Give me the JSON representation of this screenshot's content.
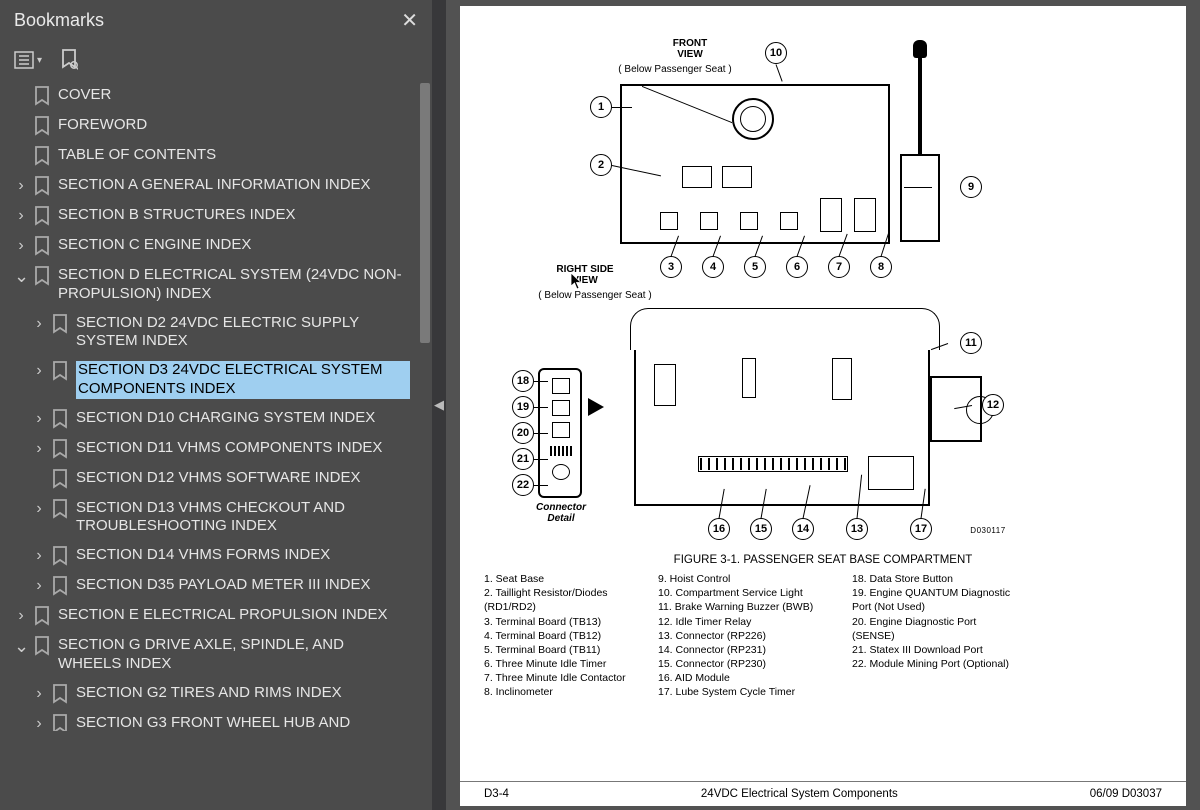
{
  "sidebar": {
    "title": "Bookmarks",
    "items": [
      {
        "depth": 0,
        "chev": "",
        "label": "COVER"
      },
      {
        "depth": 0,
        "chev": "",
        "label": "FOREWORD"
      },
      {
        "depth": 0,
        "chev": "",
        "label": "TABLE OF CONTENTS"
      },
      {
        "depth": 0,
        "chev": ">",
        "label": "SECTION A GENERAL INFORMATION INDEX"
      },
      {
        "depth": 0,
        "chev": ">",
        "label": "SECTION B STRUCTURES INDEX"
      },
      {
        "depth": 0,
        "chev": ">",
        "label": "SECTION C ENGINE INDEX"
      },
      {
        "depth": 0,
        "chev": "v",
        "label": "SECTION D ELECTRICAL SYSTEM (24VDC NON-PROPULSION) INDEX"
      },
      {
        "depth": 1,
        "chev": ">",
        "label": "SECTION D2 24VDC ELECTRIC SUPPLY SYSTEM INDEX"
      },
      {
        "depth": 1,
        "chev": ">",
        "label": "SECTION D3 24VDC ELECTRICAL SYSTEM COMPONENTS INDEX",
        "selected": true
      },
      {
        "depth": 1,
        "chev": ">",
        "label": "SECTION D10 CHARGING SYSTEM INDEX"
      },
      {
        "depth": 1,
        "chev": ">",
        "label": "SECTION D11 VHMS COMPONENTS INDEX"
      },
      {
        "depth": 1,
        "chev": "",
        "label": "SECTION D12 VHMS SOFTWARE INDEX"
      },
      {
        "depth": 1,
        "chev": ">",
        "label": "SECTION D13 VHMS CHECKOUT AND TROUBLESHOOTING INDEX"
      },
      {
        "depth": 1,
        "chev": ">",
        "label": "SECTION D14 VHMS FORMS INDEX"
      },
      {
        "depth": 1,
        "chev": ">",
        "label": "SECTION D35 PAYLOAD METER III INDEX"
      },
      {
        "depth": 0,
        "chev": ">",
        "label": "SECTION E ELECTRICAL PROPULSION INDEX"
      },
      {
        "depth": 0,
        "chev": "v",
        "label": "SECTION G DRIVE AXLE, SPINDLE, AND WHEELS INDEX"
      },
      {
        "depth": 1,
        "chev": ">",
        "label": "SECTION G2 TIRES AND RIMS INDEX"
      },
      {
        "depth": 1,
        "chev": ">",
        "label": "SECTION G3 FRONT WHEEL HUB AND",
        "cut": true
      }
    ]
  },
  "page": {
    "front_view_label": "FRONT\nVIEW",
    "front_view_sub": "( Below Passenger Seat )",
    "right_side_label": "RIGHT SIDE\nVIEW",
    "right_side_sub": "( Below Passenger Seat )",
    "connector_detail": "Connector\nDetail",
    "drawing_no": "D030117",
    "figure_title": "FIGURE 3-1. PASSENGER SEAT BASE COMPARTMENT",
    "legend_col1": [
      "1. Seat Base",
      "2. Taillight Resistor/Diodes",
      "    (RD1/RD2)",
      "3. Terminal Board (TB13)",
      "4. Terminal Board (TB12)",
      "5. Terminal Board (TB11)",
      "6. Three Minute Idle Timer",
      "7. Three Minute Idle Contactor",
      "8. Inclinometer"
    ],
    "legend_col2": [
      "9. Hoist Control",
      "10. Compartment Service Light",
      "11. Brake Warning Buzzer (BWB)",
      "12. Idle Timer Relay",
      "13. Connector (RP226)",
      "14. Connector (RP231)",
      "15. Connector (RP230)",
      "16. AID Module",
      "17. Lube System Cycle Timer"
    ],
    "legend_col3": [
      "18. Data Store Button",
      "19. Engine QUANTUM Diagnostic",
      "      Port (Not Used)",
      "20. Engine Diagnostic Port",
      "      (SENSE)",
      "21. Statex III Download Port",
      "22. Module Mining Port (Optional)"
    ],
    "footer_left": "D3-4",
    "footer_center": "24VDC Electrical System Components",
    "footer_right": "06/09  D03037"
  },
  "colors": {
    "sidebar_bg": "#4b4b4b",
    "selection": "#9fcff0",
    "page_bg": "#ffffff",
    "viewer_bg": "#525252"
  }
}
